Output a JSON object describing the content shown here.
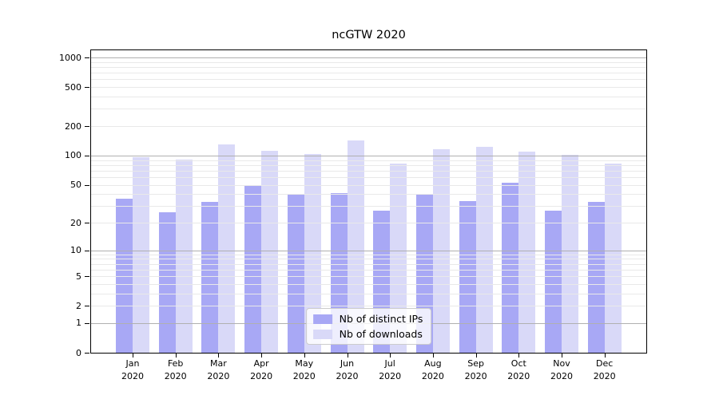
{
  "figure": {
    "title": "ncGTW 2020"
  },
  "chart_data": {
    "type": "bar",
    "title": "ncGTW 2020",
    "xlabel": "",
    "ylabel": "",
    "categories": [
      "Jan 2020",
      "Feb 2020",
      "Mar 2020",
      "Apr 2020",
      "May 2020",
      "Jun 2020",
      "Jul 2020",
      "Aug 2020",
      "Sep 2020",
      "Oct 2020",
      "Nov 2020",
      "Dec 2020"
    ],
    "x_tick_months": [
      "Jan",
      "Feb",
      "Mar",
      "Apr",
      "May",
      "Jun",
      "Jul",
      "Aug",
      "Sep",
      "Oct",
      "Nov",
      "Dec"
    ],
    "x_tick_year": "2020",
    "series": [
      {
        "name": "Nb of distinct IPs",
        "color": "#a8a8f5",
        "values": [
          36,
          26,
          33,
          49,
          40,
          41,
          27,
          40,
          34,
          52,
          27,
          33
        ]
      },
      {
        "name": "Nb of downloads",
        "color": "#d9d9f8",
        "values": [
          97,
          91,
          129,
          112,
          103,
          144,
          82,
          116,
          122,
          110,
          101,
          82
        ]
      }
    ],
    "yscale": "log1p",
    "yticks": [
      1000,
      500,
      200,
      100,
      50,
      20,
      10,
      5,
      2,
      1,
      0
    ],
    "ylim": [
      0,
      1230
    ],
    "grid": "horizontal",
    "grid_above_bars": true,
    "gridlines": {
      "major": [
        1,
        10,
        100,
        1000
      ],
      "minor": [
        2,
        3,
        4,
        5,
        6,
        7,
        8,
        9,
        20,
        30,
        40,
        50,
        60,
        70,
        80,
        90,
        200,
        300,
        400,
        500,
        600,
        700,
        800,
        900
      ]
    },
    "legend": {
      "position": "lower center",
      "entries": [
        "Nb of distinct IPs",
        "Nb of downloads"
      ]
    },
    "colors": {
      "bar_distinct_ips": "#a8a8f5",
      "bar_downloads": "#d9d9f8",
      "major_grid": "#b0b0b0",
      "minor_grid": "#e9e9e9",
      "axis": "#000000",
      "text": "#000000"
    }
  }
}
